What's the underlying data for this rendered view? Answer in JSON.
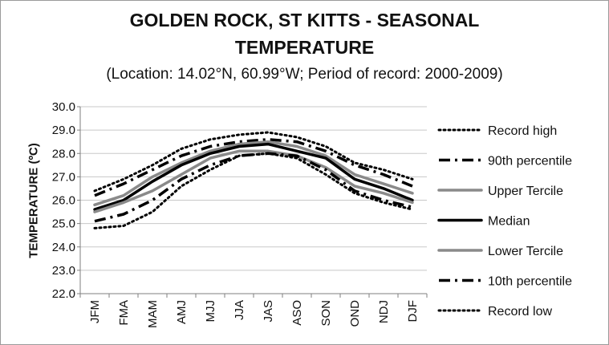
{
  "chart_data": {
    "type": "line",
    "title": "GOLDEN ROCK, ST KITTS - SEASONAL",
    "title_line2": "TEMPERATURE",
    "subtitle": "(Location: 14.02°N, 60.99°W; Period of record: 2000-2009)",
    "ylabel": "TEMPERATURE (ºC)",
    "xlabel": "",
    "categories": [
      "JFM",
      "FMA",
      "MAM",
      "AMJ",
      "MJJ",
      "JJA",
      "JAS",
      "ASO",
      "SON",
      "OND",
      "NDJ",
      "DJF"
    ],
    "ylim": [
      22.0,
      30.0
    ],
    "yticks": [
      "30.0",
      "29.0",
      "28.0",
      "27.0",
      "26.0",
      "25.0",
      "24.0",
      "23.0",
      "22.0"
    ],
    "grid": true,
    "legend_position": "right",
    "series": [
      {
        "name": "Record high",
        "style": "dotted",
        "color": "#000000",
        "values": [
          26.4,
          26.9,
          27.5,
          28.2,
          28.6,
          28.8,
          28.9,
          28.7,
          28.3,
          27.6,
          27.3,
          26.9
        ]
      },
      {
        "name": "90th percentile",
        "style": "dash-dot",
        "color": "#000000",
        "values": [
          26.2,
          26.7,
          27.3,
          27.9,
          28.3,
          28.5,
          28.6,
          28.5,
          28.1,
          27.5,
          27.1,
          26.6
        ]
      },
      {
        "name": "Upper Tercile",
        "style": "solid",
        "color": "#8a8a8a",
        "values": [
          25.8,
          26.2,
          27.0,
          27.6,
          28.1,
          28.4,
          28.5,
          28.3,
          27.9,
          27.1,
          26.7,
          26.3
        ]
      },
      {
        "name": "Median",
        "style": "solid",
        "color": "#000000",
        "values": [
          25.6,
          26.0,
          26.8,
          27.5,
          28.0,
          28.3,
          28.4,
          28.1,
          27.8,
          26.9,
          26.5,
          26.0
        ]
      },
      {
        "name": "Lower Tercile",
        "style": "solid",
        "color": "#8a8a8a",
        "values": [
          25.5,
          25.9,
          26.4,
          27.1,
          27.8,
          28.1,
          28.1,
          27.9,
          27.4,
          26.6,
          26.3,
          25.9
        ]
      },
      {
        "name": "10th percentile",
        "style": "dash-dot",
        "color": "#000000",
        "values": [
          25.1,
          25.4,
          26.0,
          26.9,
          27.5,
          27.9,
          28.0,
          27.9,
          27.3,
          26.4,
          26.0,
          25.7
        ]
      },
      {
        "name": "Record low",
        "style": "dotted",
        "color": "#000000",
        "values": [
          24.8,
          24.9,
          25.5,
          26.6,
          27.3,
          27.9,
          28.0,
          27.8,
          27.1,
          26.3,
          25.9,
          25.6
        ]
      }
    ]
  }
}
